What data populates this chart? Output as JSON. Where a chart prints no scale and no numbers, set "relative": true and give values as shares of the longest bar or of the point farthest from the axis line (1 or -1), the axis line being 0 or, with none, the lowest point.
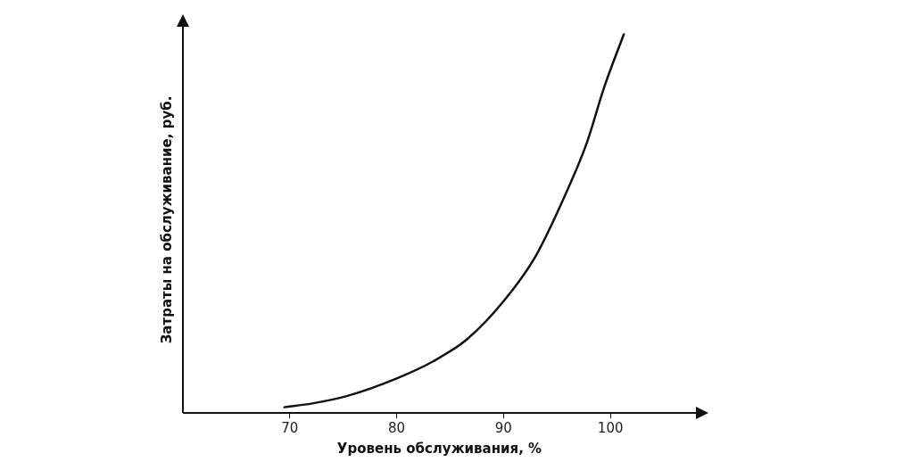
{
  "chart_data": {
    "type": "line",
    "relative": true,
    "xlabel": "Уровень обслуживания, %",
    "ylabel": "Затраты на обслуживание, руб.",
    "xlim": [
      60,
      108
    ],
    "xticks": [
      70,
      80,
      90,
      100
    ],
    "grid": false,
    "legend": false,
    "marker": "none",
    "line_style": "solid",
    "series": [
      {
        "color": "#111111",
        "x": [
          69.5,
          72.1,
          75.4,
          80,
          83.4,
          86.6,
          90,
          93,
          95.5,
          97.8,
          99.4,
          101.25
        ],
        "values": [
          0.015,
          0.025,
          0.045,
          0.091,
          0.136,
          0.195,
          0.295,
          0.414,
          0.559,
          0.714,
          0.859,
          1
        ]
      }
    ]
  }
}
